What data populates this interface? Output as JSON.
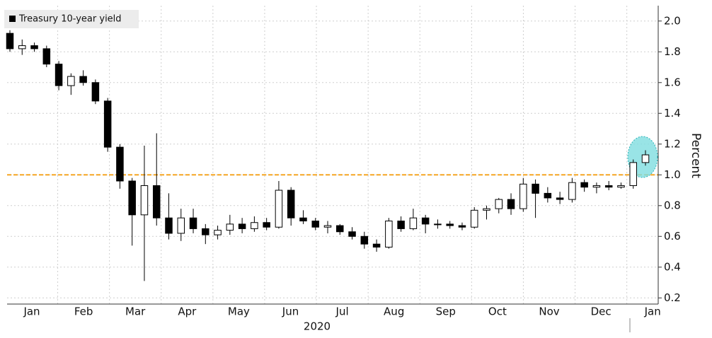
{
  "chart_data": {
    "type": "candlestick",
    "ylabel": "Percent",
    "xlabel": "2020",
    "xtick_labels": [
      "Jan",
      "Feb",
      "Mar",
      "Apr",
      "May",
      "Jun",
      "Jul",
      "Aug",
      "Sep",
      "Oct",
      "Nov",
      "Dec",
      "Jan"
    ],
    "ylim": [
      0.16,
      2.1
    ],
    "yticks": [
      {
        "value": 0.2,
        "label": "0.2"
      },
      {
        "value": 0.4,
        "label": "0.4"
      },
      {
        "value": 0.6,
        "label": "0.6"
      },
      {
        "value": 0.8,
        "label": "0.8"
      },
      {
        "value": 1,
        "label": "1.0"
      },
      {
        "value": 1.2,
        "label": "1.2"
      },
      {
        "value": 1.4,
        "label": "1.4"
      },
      {
        "value": 1.6,
        "label": "1.6"
      },
      {
        "value": 1.8,
        "label": "1.8"
      },
      {
        "value": 2,
        "label": "2.0"
      }
    ],
    "grid": true,
    "reference_line": 1,
    "reference_color": "#f5a623",
    "legend": "upper left",
    "series": [
      {
        "name": "Treasury 10-year yield",
        "color": "#000000",
        "open": [
          1.92,
          1.82,
          1.84,
          1.82,
          1.72,
          1.58,
          1.64,
          1.6,
          1.48,
          1.18,
          0.96,
          0.74,
          0.93,
          0.72,
          0.62,
          0.72,
          0.65,
          0.61,
          0.64,
          0.68,
          0.65,
          0.69,
          0.66,
          0.9,
          0.72,
          0.7,
          0.66,
          0.67,
          0.63,
          0.6,
          0.55,
          0.53,
          0.7,
          0.65,
          0.72,
          0.68,
          0.68,
          0.67,
          0.66,
          0.77,
          0.78,
          0.84,
          0.78,
          0.94,
          0.88,
          0.85,
          0.84,
          0.95,
          0.92,
          0.93,
          0.92,
          0.93,
          1.08
        ],
        "high": [
          1.94,
          1.88,
          1.86,
          1.84,
          1.74,
          1.66,
          1.68,
          1.62,
          1.5,
          1.2,
          0.98,
          1.19,
          1.27,
          0.88,
          0.78,
          0.78,
          0.68,
          0.67,
          0.74,
          0.72,
          0.73,
          0.72,
          0.96,
          0.92,
          0.77,
          0.72,
          0.7,
          0.68,
          0.66,
          0.63,
          0.58,
          0.72,
          0.73,
          0.78,
          0.74,
          0.71,
          0.7,
          0.69,
          0.79,
          0.8,
          0.85,
          0.88,
          0.98,
          0.97,
          0.92,
          0.89,
          0.98,
          0.97,
          0.95,
          0.96,
          0.95,
          1.1,
          1.16
        ],
        "low": [
          1.8,
          1.78,
          1.8,
          1.7,
          1.55,
          1.52,
          1.58,
          1.46,
          1.15,
          0.91,
          0.54,
          0.31,
          0.67,
          0.58,
          0.57,
          0.62,
          0.55,
          0.58,
          0.61,
          0.62,
          0.63,
          0.64,
          0.65,
          0.67,
          0.68,
          0.64,
          0.62,
          0.61,
          0.58,
          0.52,
          0.5,
          0.52,
          0.63,
          0.64,
          0.62,
          0.65,
          0.65,
          0.64,
          0.65,
          0.71,
          0.75,
          0.74,
          0.76,
          0.72,
          0.82,
          0.81,
          0.82,
          0.89,
          0.88,
          0.9,
          0.91,
          0.91,
          1.06
        ],
        "close": [
          1.82,
          1.84,
          1.82,
          1.72,
          1.58,
          1.64,
          1.6,
          1.48,
          1.18,
          0.96,
          0.74,
          0.93,
          0.72,
          0.62,
          0.72,
          0.65,
          0.61,
          0.64,
          0.68,
          0.65,
          0.69,
          0.66,
          0.9,
          0.72,
          0.7,
          0.66,
          0.67,
          0.63,
          0.6,
          0.55,
          0.53,
          0.7,
          0.65,
          0.72,
          0.68,
          0.68,
          0.67,
          0.66,
          0.77,
          0.78,
          0.84,
          0.78,
          0.94,
          0.88,
          0.85,
          0.84,
          0.95,
          0.92,
          0.93,
          0.92,
          0.93,
          1.08,
          1.13
        ]
      }
    ]
  }
}
